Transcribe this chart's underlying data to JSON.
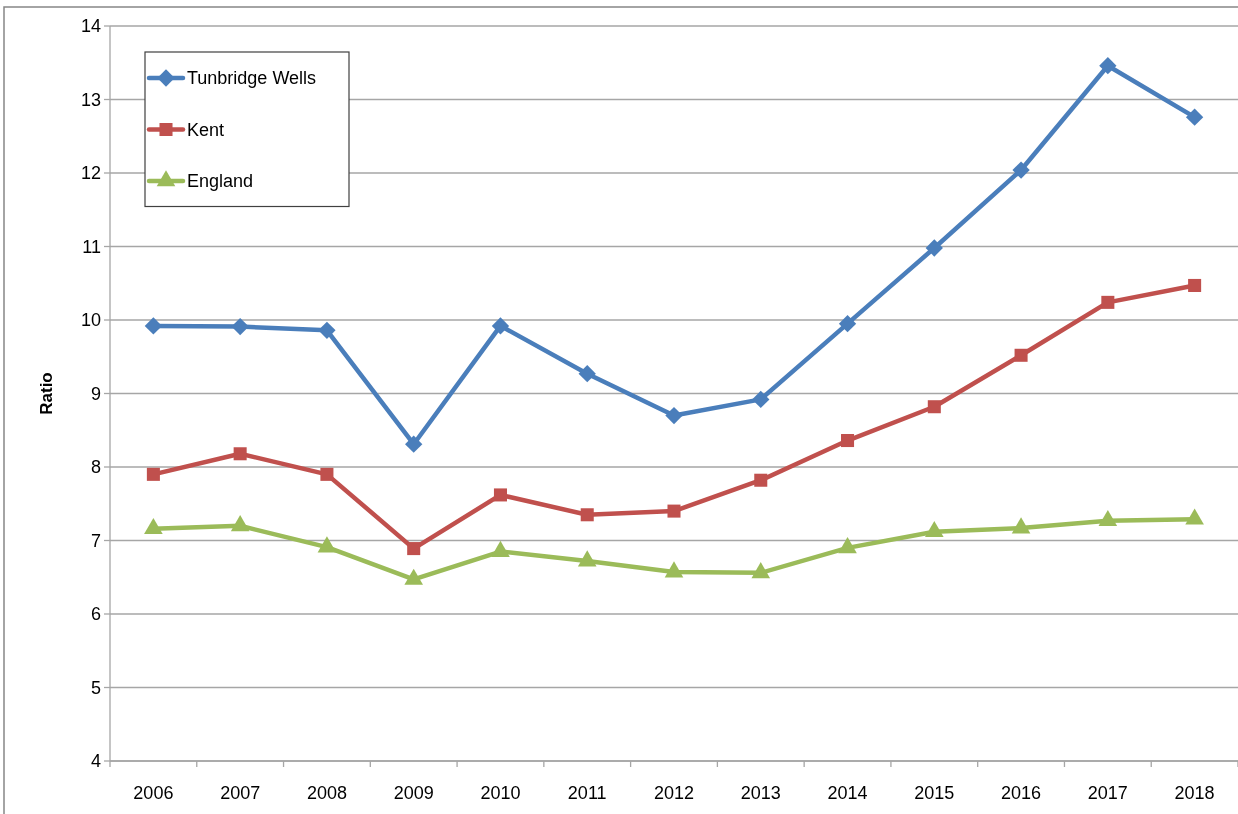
{
  "chart_data": {
    "type": "line",
    "ylabel": "Ratio",
    "categories": [
      "2006",
      "2007",
      "2008",
      "2009",
      "2010",
      "2011",
      "2012",
      "2013",
      "2014",
      "2015",
      "2016",
      "2017",
      "2018"
    ],
    "series": [
      {
        "name": "Tunbridge Wells",
        "color": "#4a7ebb",
        "marker": "diamond",
        "values": [
          9.92,
          9.91,
          9.86,
          8.31,
          9.92,
          9.27,
          8.7,
          8.92,
          9.95,
          10.98,
          12.04,
          13.46,
          12.76
        ]
      },
      {
        "name": "Kent",
        "color": "#c0504d",
        "marker": "square",
        "values": [
          7.9,
          8.18,
          7.9,
          6.89,
          7.62,
          7.35,
          7.4,
          7.82,
          8.36,
          8.82,
          9.52,
          10.24,
          10.47
        ]
      },
      {
        "name": "England",
        "color": "#9bbb59",
        "marker": "triangle",
        "values": [
          7.16,
          7.2,
          6.91,
          6.47,
          6.85,
          6.72,
          6.57,
          6.56,
          6.9,
          7.12,
          7.17,
          7.27,
          7.29
        ]
      }
    ],
    "ylim": [
      4,
      14
    ],
    "yticks": [
      4,
      5,
      6,
      7,
      8,
      9,
      10,
      11,
      12,
      13,
      14
    ],
    "grid": "y",
    "legend": "top left",
    "line_style": "solid"
  }
}
